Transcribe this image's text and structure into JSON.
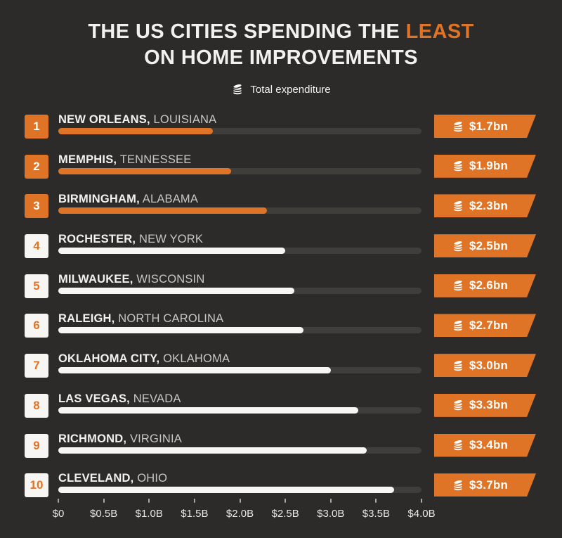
{
  "title": {
    "line1_prefix": "THE US CITIES SPENDING THE ",
    "line1_highlight": "LEAST",
    "line2": "ON HOME IMPROVEMENTS"
  },
  "legend": {
    "icon": "coins-icon",
    "label": "Total expenditure"
  },
  "chart_data": {
    "type": "bar",
    "orientation": "horizontal",
    "title": "THE US CITIES SPENDING THE LEAST ON HOME IMPROVEMENTS",
    "legend_entries": [
      "Total expenditure"
    ],
    "legend_position": "top-center",
    "unit": "USD billions",
    "categories": [
      "New Orleans, Louisiana",
      "Memphis, Tennessee",
      "Birmingham, Alabama",
      "Rochester, New York",
      "Milwaukee, Wisconsin",
      "Raleigh, North Carolina",
      "Oklahoma City, Oklahoma",
      "Las Vegas, Nevada",
      "Richmond, Virginia",
      "Cleveland, Ohio"
    ],
    "values": [
      1.7,
      1.9,
      2.3,
      2.5,
      2.6,
      2.7,
      3.0,
      3.3,
      3.4,
      3.7
    ],
    "value_labels": [
      "$1.7bn",
      "$1.9bn",
      "$2.3bn",
      "$2.5bn",
      "$2.6bn",
      "$2.7bn",
      "$3.0bn",
      "$3.3bn",
      "$3.4bn",
      "$3.7bn"
    ],
    "ranks": [
      1,
      2,
      3,
      4,
      5,
      6,
      7,
      8,
      9,
      10
    ],
    "highlighted_ranks": [
      1,
      2,
      3
    ],
    "xlim": [
      0,
      4.0
    ],
    "x_ticks": [
      "$0",
      "$0.5B",
      "$1.0B",
      "$1.5B",
      "$2.0B",
      "$2.5B",
      "$3.0B",
      "$3.5B",
      "$4.0B"
    ],
    "grid": false
  },
  "rows": [
    {
      "rank": "1",
      "city": "NEW ORLEANS,",
      "state": "LOUISIANA",
      "value_bn": 1.7,
      "value_label": "$1.7bn",
      "highlight": true
    },
    {
      "rank": "2",
      "city": "MEMPHIS,",
      "state": "TENNESSEE",
      "value_bn": 1.9,
      "value_label": "$1.9bn",
      "highlight": true
    },
    {
      "rank": "3",
      "city": "BIRMINGHAM,",
      "state": "ALABAMA",
      "value_bn": 2.3,
      "value_label": "$2.3bn",
      "highlight": true
    },
    {
      "rank": "4",
      "city": "ROCHESTER,",
      "state": "NEW YORK",
      "value_bn": 2.5,
      "value_label": "$2.5bn",
      "highlight": false
    },
    {
      "rank": "5",
      "city": "MILWAUKEE,",
      "state": "WISCONSIN",
      "value_bn": 2.6,
      "value_label": "$2.6bn",
      "highlight": false
    },
    {
      "rank": "6",
      "city": "RALEIGH,",
      "state": "NORTH CAROLINA",
      "value_bn": 2.7,
      "value_label": "$2.7bn",
      "highlight": false
    },
    {
      "rank": "7",
      "city": "OKLAHOMA CITY,",
      "state": "OKLAHOMA",
      "value_bn": 3.0,
      "value_label": "$3.0bn",
      "highlight": false
    },
    {
      "rank": "8",
      "city": "LAS VEGAS,",
      "state": "NEVADA",
      "value_bn": 3.3,
      "value_label": "$3.3bn",
      "highlight": false
    },
    {
      "rank": "9",
      "city": "RICHMOND,",
      "state": "VIRGINIA",
      "value_bn": 3.4,
      "value_label": "$3.4bn",
      "highlight": false
    },
    {
      "rank": "10",
      "city": "CLEVELAND,",
      "state": "OHIO",
      "value_bn": 3.7,
      "value_label": "$3.7bn",
      "highlight": false
    }
  ],
  "colors": {
    "background": "#2c2b29",
    "accent_orange": "#df7426",
    "bar_track": "#403e3b",
    "bar_white": "#f7f6f3",
    "text": "#f2f1ee",
    "muted_text": "#c9c7c3"
  }
}
